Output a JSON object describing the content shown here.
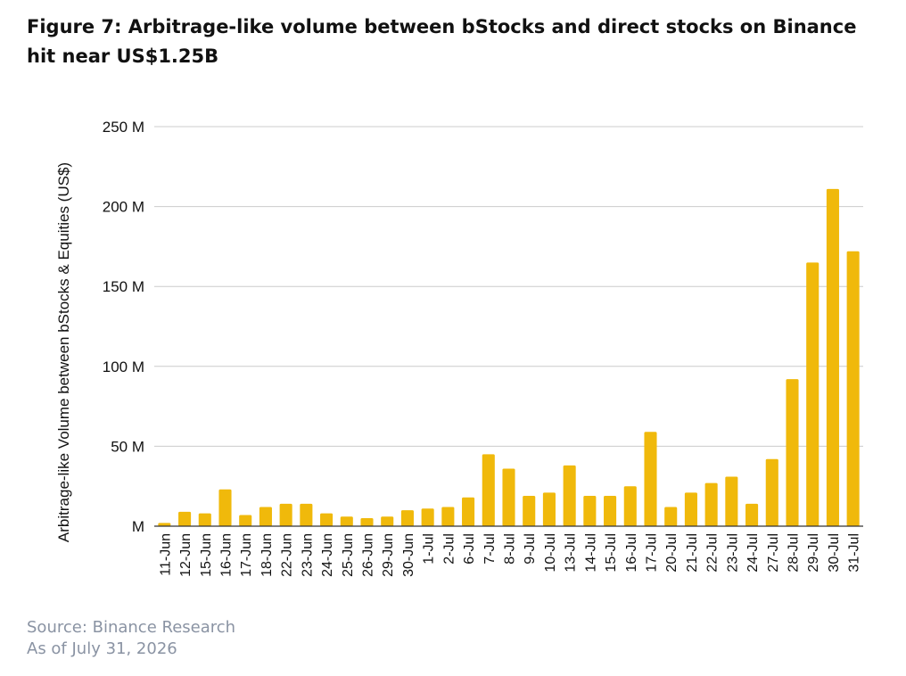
{
  "title": "Figure 7: Arbitrage-like volume between bStocks and direct stocks on Binance hit near US$1.25B",
  "footer": {
    "source": "Source: Binance Research",
    "as_of": "As of July 31, 2026"
  },
  "colors": {
    "bar": "#f0b90b",
    "grid": "#cccccc",
    "axis": "#333333"
  },
  "chart_data": {
    "type": "bar",
    "ylabel": "Arbitrage-like Volume between bStocks & Equities (US$)",
    "ylim": [
      0,
      250
    ],
    "yticks": [
      {
        "value": 0,
        "label": "M"
      },
      {
        "value": 50,
        "label": "50 M"
      },
      {
        "value": 100,
        "label": "100 M"
      },
      {
        "value": 150,
        "label": "150 M"
      },
      {
        "value": 200,
        "label": "200 M"
      },
      {
        "value": 250,
        "label": "250 M"
      }
    ],
    "grid": true,
    "categories": [
      "11-Jun",
      "12-Jun",
      "15-Jun",
      "16-Jun",
      "17-Jun",
      "18-Jun",
      "22-Jun",
      "23-Jun",
      "24-Jun",
      "25-Jun",
      "26-Jun",
      "29-Jun",
      "30-Jun",
      "1-Jul",
      "2-Jul",
      "6-Jul",
      "7-Jul",
      "8-Jul",
      "9-Jul",
      "10-Jul",
      "13-Jul",
      "14-Jul",
      "15-Jul",
      "16-Jul",
      "17-Jul",
      "20-Jul",
      "21-Jul",
      "22-Jul",
      "23-Jul",
      "24-Jul",
      "27-Jul",
      "28-Jul",
      "29-Jul",
      "30-Jul",
      "31-Jul"
    ],
    "values": [
      2,
      9,
      8,
      23,
      7,
      12,
      14,
      14,
      8,
      6,
      5,
      6,
      10,
      11,
      12,
      18,
      45,
      36,
      19,
      21,
      38,
      19,
      19,
      25,
      59,
      12,
      21,
      27,
      31,
      14,
      42,
      92,
      165,
      211,
      172
    ]
  }
}
